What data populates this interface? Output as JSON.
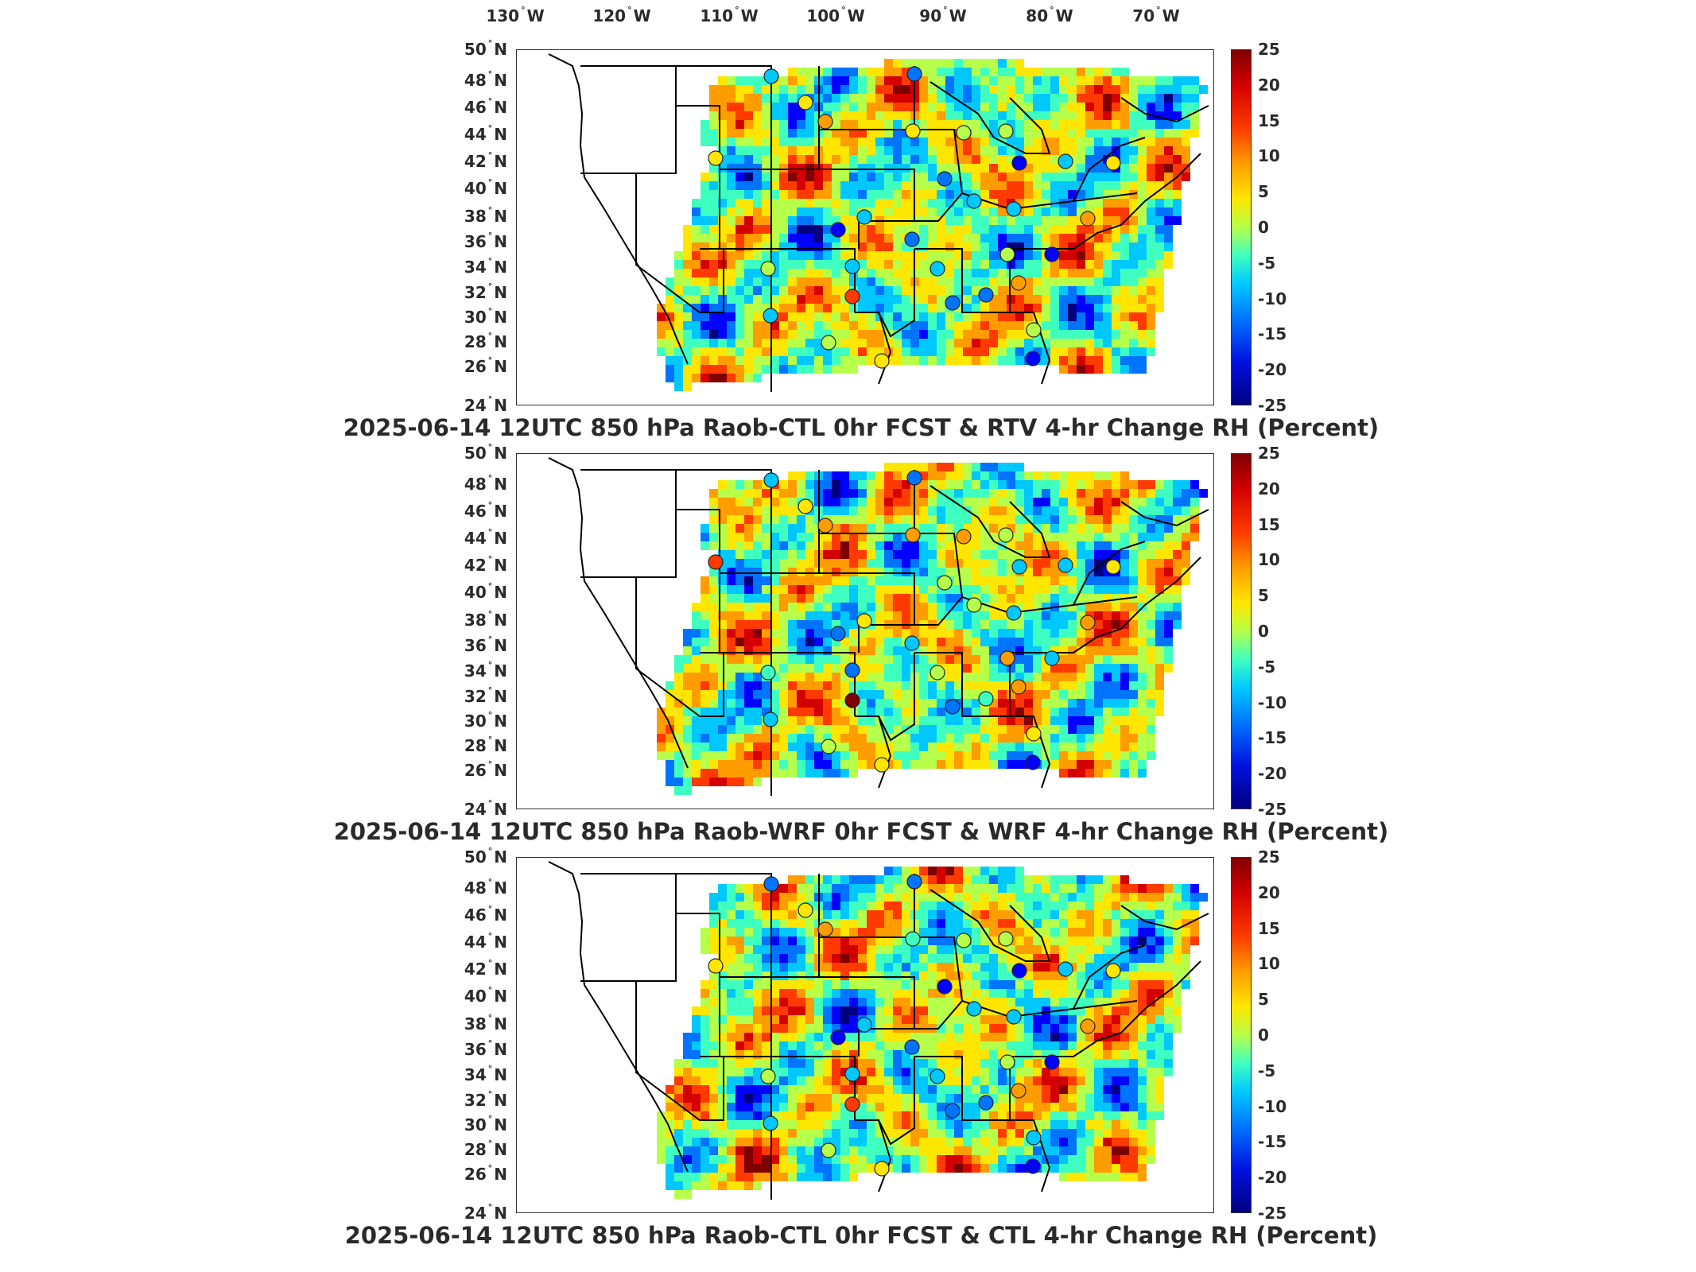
{
  "lon_labels": [
    "130",
    "120",
    "110",
    "100",
    "90",
    "80",
    "70"
  ],
  "lon_suffix": "W",
  "lat_labels": [
    "50",
    "48",
    "46",
    "44",
    "42",
    "40",
    "38",
    "36",
    "34",
    "32",
    "30",
    "28",
    "26",
    "24"
  ],
  "lat_suffix": "N",
  "colorbar": {
    "ticks": [
      "25",
      "20",
      "15",
      "10",
      "5",
      "0",
      "-5",
      "-10",
      "-15",
      "-20",
      "-25"
    ],
    "range": [
      -25,
      25
    ],
    "colors": [
      "#7f0000",
      "#ff0000",
      "#ffe600",
      "#00ffff",
      "#0000ff",
      "#00007f"
    ]
  },
  "panels": [
    {
      "title": "2025-06-14 12UTC 850 hPa Raob-CTL 0hr FCST & RTV 4-hr Change RH (Percent)"
    },
    {
      "title": "2025-06-14 12UTC 850 hPa Raob-WRF 0hr FCST & WRF 4-hr Change RH (Percent)"
    },
    {
      "title": "2025-06-14 12UTC 850 hPa Raob-CTL 0hr FCST & CTL 4-hr Change RH (Percent)"
    }
  ]
}
